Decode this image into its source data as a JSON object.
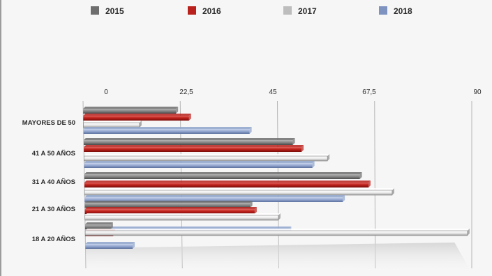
{
  "chart_data": {
    "type": "bar",
    "orientation": "horizontal",
    "categories": [
      "MAYORES DE 50",
      "41 A 50 AÑOS",
      "31 A 40 AÑOS",
      "21 A 30 AÑOS",
      "18 A 20 AÑOS"
    ],
    "series": [
      {
        "name": "2015",
        "color": "#6e6e6e",
        "values": [
          21.5,
          48.5,
          64,
          38.5,
          6
        ]
      },
      {
        "name": "2016",
        "color": "#b8211c",
        "values": [
          24.5,
          50.5,
          66,
          39.5,
          6.5
        ]
      },
      {
        "name": "2017",
        "color": "#e8e8e8",
        "values": [
          13,
          56.5,
          71.5,
          45,
          89
        ]
      },
      {
        "name": "2018",
        "color": "#8fa4cc",
        "values": [
          38.5,
          53,
          60,
          47.5,
          11
        ]
      }
    ],
    "ticks": [
      "0",
      "22,5",
      "45",
      "67,5",
      "90"
    ],
    "xlim": [
      0,
      90
    ],
    "legend_position": "top",
    "grid": true
  }
}
